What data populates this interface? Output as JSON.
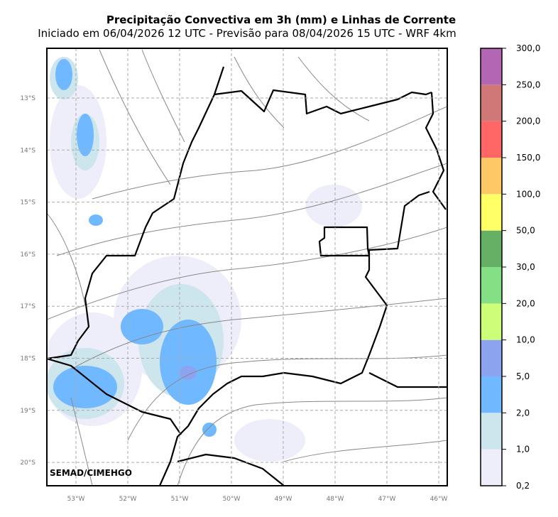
{
  "title": "Precipitação Convectiva em 3h (mm) e Linhas de Corrente",
  "subtitle": "Iniciado em 06/04/2026 12 UTC - Previsão para 08/04/2026 15 UTC - WRF 4km",
  "map": {
    "latitude_labels": [
      "13°S",
      "14°S",
      "15°S",
      "16°S",
      "17°S",
      "18°S",
      "19°S",
      "20°S"
    ],
    "longitude_labels": [
      "53°W",
      "52°W",
      "51°W",
      "50°W",
      "49°W",
      "48°W",
      "47°W",
      "46°W"
    ],
    "credit": "SEMAD/CIMEHGO"
  },
  "colorbar": {
    "ticks": [
      {
        "value": 0.2,
        "label": "0,2"
      },
      {
        "value": 1,
        "label": "1,0"
      },
      {
        "value": 2,
        "label": "2,0"
      },
      {
        "value": 5,
        "label": "5,0"
      },
      {
        "value": 10,
        "label": "10,0"
      },
      {
        "value": 20,
        "label": "20,0"
      },
      {
        "value": 30,
        "label": "30,0"
      },
      {
        "value": 50,
        "label": "50,0"
      },
      {
        "value": 100,
        "label": "100,0"
      },
      {
        "value": 150,
        "label": "150,0"
      },
      {
        "value": 200,
        "label": "200,0"
      },
      {
        "value": 250,
        "label": "250,0"
      },
      {
        "value": 300,
        "label": "300,0"
      }
    ],
    "colors": [
      "#eeeefa",
      "#cde5ec",
      "#70b8ff",
      "#8ca3ef",
      "#ccff77",
      "#85e085",
      "#66b066",
      "#ffff66",
      "#ffc866",
      "#ff6666",
      "#d07878",
      "#b366b3"
    ]
  }
}
